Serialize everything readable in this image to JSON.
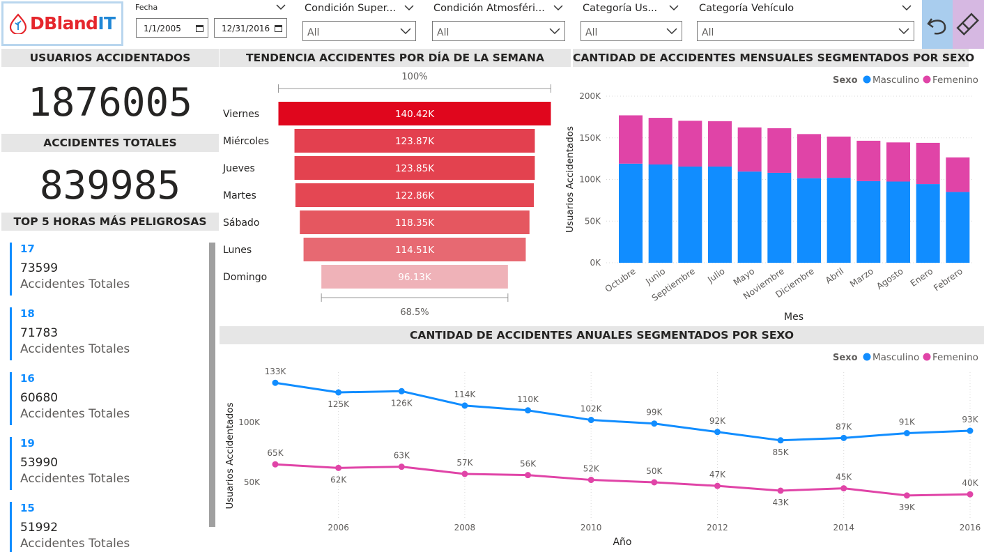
{
  "logo": {
    "part1": "DBland",
    "part2": "IT"
  },
  "filters": {
    "fecha": {
      "label": "Fecha",
      "start": "1/1/2005",
      "end": "12/31/2016"
    },
    "condicion_superficie": {
      "label": "Condición Super...",
      "value": "All"
    },
    "condicion_atmosferica": {
      "label": "Condición Atmosféri...",
      "value": "All"
    },
    "categoria_usuario": {
      "label": "Categoría Us...",
      "value": "All"
    },
    "categoria_vehiculo": {
      "label": "Categoría Vehículo",
      "value": "All"
    }
  },
  "buttons": {
    "undo_icon": "undo-arrow-icon",
    "clear_icon": "eraser-icon"
  },
  "kpis": {
    "usuarios_header": "USUARIOS ACCIDENTADOS",
    "usuarios_value": "1876005",
    "accidentes_header": "ACCIDENTES TOTALES",
    "accidentes_value": "839985"
  },
  "top_hours": {
    "header": "TOP 5 HORAS MÁS PELIGROSAS",
    "items": [
      {
        "hour": "17",
        "count": "73599",
        "label": "Accidentes Totales"
      },
      {
        "hour": "18",
        "count": "71783",
        "label": "Accidentes Totales"
      },
      {
        "hour": "16",
        "count": "60680",
        "label": "Accidentes Totales"
      },
      {
        "hour": "19",
        "count": "53990",
        "label": "Accidentes Totales"
      },
      {
        "hour": "15",
        "count": "51992",
        "label": "Accidentes Totales"
      }
    ]
  },
  "colors": {
    "masculino": "#118dff",
    "femenino": "#e044a7",
    "funnel_dark": "#e0061d"
  },
  "chart_data": [
    {
      "type": "bar",
      "subtype": "funnel",
      "title": "TENDENCIA ACCIDENTES POR DÍA DE LA SEMANA",
      "categories": [
        "Viernes",
        "Miércoles",
        "Jueves",
        "Martes",
        "Sábado",
        "Lunes",
        "Domingo"
      ],
      "values": [
        140.42,
        123.87,
        123.85,
        122.86,
        118.35,
        114.51,
        96.13
      ],
      "value_labels": [
        "140.42K",
        "123.87K",
        "123.85K",
        "122.86K",
        "118.35K",
        "114.51K",
        "96.13K"
      ],
      "top_percent": "100%",
      "bottom_percent": "68.5%"
    },
    {
      "type": "bar",
      "subtype": "stacked",
      "title": "CANTIDAD DE ACCIDENTES MENSUALES SEGMENTADOS POR SEXO",
      "xlabel": "Mes",
      "ylabel": "Usuarios Accidentados",
      "legend_title": "Sexo",
      "legend_position": "top-right",
      "categories": [
        "Octubre",
        "Junio",
        "Septiembre",
        "Julio",
        "Mayo",
        "Noviembre",
        "Diciembre",
        "Abril",
        "Marzo",
        "Agosto",
        "Enero",
        "Febrero"
      ],
      "series": [
        {
          "name": "Masculino",
          "values": [
            119000,
            118000,
            115500,
            115500,
            109500,
            108000,
            101500,
            102000,
            98000,
            97500,
            94500,
            85000
          ]
        },
        {
          "name": "Femenino",
          "values": [
            58000,
            56000,
            55000,
            54500,
            53000,
            53500,
            53000,
            49500,
            48500,
            47000,
            49500,
            41500
          ]
        }
      ],
      "ylim": [
        0,
        200000
      ],
      "yticks": [
        "0K",
        "50K",
        "100K",
        "150K",
        "200K"
      ]
    },
    {
      "type": "line",
      "title": "CANTIDAD DE ACCIDENTES ANUALES SEGMENTADOS POR SEXO",
      "xlabel": "Año",
      "ylabel": "Usuarios Accidentados",
      "legend_title": "Sexo",
      "legend_position": "top-right",
      "x": [
        2005,
        2006,
        2007,
        2008,
        2009,
        2010,
        2011,
        2012,
        2013,
        2014,
        2015,
        2016
      ],
      "xticks": [
        "2006",
        "2008",
        "2010",
        "2012",
        "2014",
        "2016"
      ],
      "yticks": [
        "50K",
        "100K"
      ],
      "series": [
        {
          "name": "Masculino",
          "values": [
            133,
            125,
            126,
            114,
            110,
            102,
            99,
            92,
            85,
            87,
            91,
            93
          ],
          "labels": [
            "133K",
            "125K",
            "126K",
            "114K",
            "110K",
            "102K",
            "99K",
            "92K",
            "85K",
            "87K",
            "91K",
            "93K"
          ]
        },
        {
          "name": "Femenino",
          "values": [
            65,
            62,
            63,
            57,
            56,
            52,
            50,
            47,
            43,
            45,
            39,
            40
          ],
          "labels": [
            "65K",
            "62K",
            "63K",
            "57K",
            "56K",
            "52K",
            "50K",
            "47K",
            "43K",
            "45K",
            "39K",
            "40K"
          ]
        }
      ],
      "grid": true
    }
  ]
}
